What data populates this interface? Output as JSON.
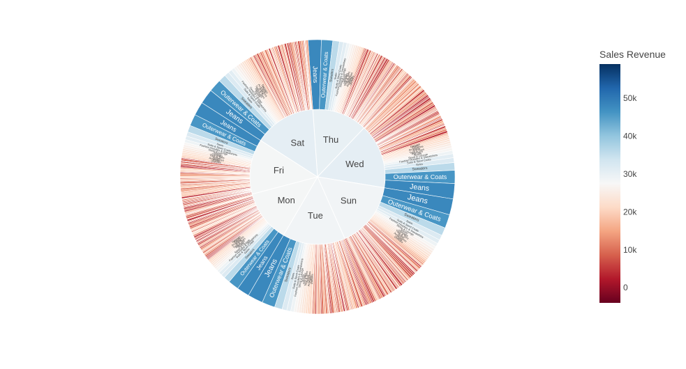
{
  "chart_data": {
    "type": "sunburst",
    "title": "",
    "levels": [
      "day",
      "category"
    ],
    "colorbar": {
      "title": "Sales Revenue",
      "range": [
        -4000,
        59000
      ],
      "ticks": [
        0,
        10000,
        20000,
        30000,
        40000,
        50000
      ],
      "tick_labels": [
        "0",
        "10k",
        "20k",
        "30k",
        "40k",
        "50k"
      ],
      "colorscale": [
        "#67001f",
        "#b2182b",
        "#d6604d",
        "#f4a582",
        "#fddbc7",
        "#f7f7f7",
        "#d1e5f0",
        "#92c5de",
        "#4393c3",
        "#2166ac",
        "#053061"
      ]
    },
    "named_categories": [
      {
        "name": "Jeans",
        "value": 48000
      },
      {
        "name": "Outerwear & Coats",
        "value": 46000
      },
      {
        "name": "Sweaters",
        "value": 36000
      },
      {
        "name": "Swim",
        "value": 32000
      },
      {
        "name": "Suits & Sport Coats",
        "value": 31000
      },
      {
        "name": "Fashion Hoodies & Sweatshirts",
        "value": 29000
      },
      {
        "name": "Sleep & Lounge",
        "value": 27000
      },
      {
        "name": "Shorts",
        "value": 26000
      },
      {
        "name": "Intimates",
        "value": 25000
      },
      {
        "name": "Tops & Tees",
        "value": 24000
      },
      {
        "name": "Active",
        "value": 23000
      },
      {
        "name": "Accessories",
        "value": 22000
      },
      {
        "name": "Pants",
        "value": 21000
      },
      {
        "name": "Dresses",
        "value": 20000
      }
    ],
    "days": [
      {
        "name": "Thu",
        "value": 30000,
        "share": 0.132
      },
      {
        "name": "Wed",
        "value": 30500,
        "share": 0.155
      },
      {
        "name": "Sun",
        "value": 28500,
        "share": 0.158
      },
      {
        "name": "Tue",
        "value": 28500,
        "share": 0.15
      },
      {
        "name": "Mon",
        "value": 28000,
        "share": 0.125
      },
      {
        "name": "Fri",
        "value": 28000,
        "share": 0.132
      },
      {
        "name": "Sat",
        "value": 30500,
        "share": 0.148
      }
    ]
  }
}
